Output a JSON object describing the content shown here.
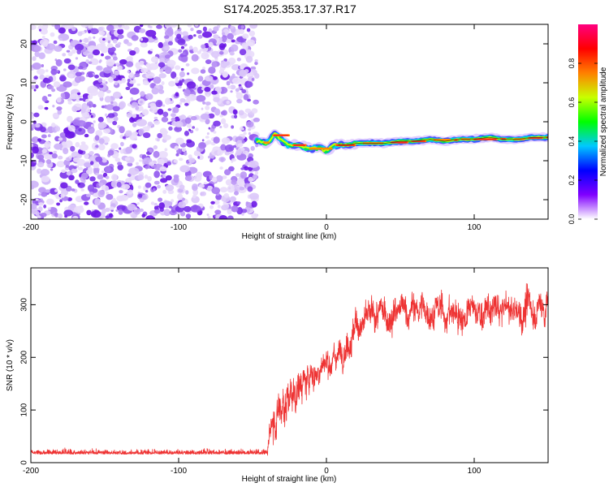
{
  "title": "S174.2025.353.17.37.R17",
  "chart_data": [
    {
      "type": "heatmap",
      "name": "spectrogram",
      "xlabel": "Height of straight line (km)",
      "ylabel": "Frequency (Hz)",
      "xlim": [
        -200,
        150
      ],
      "ylim": [
        -25,
        25
      ],
      "xticks": [
        -200,
        -100,
        0,
        100
      ],
      "yticks": [
        20,
        10,
        0,
        -10,
        -20
      ],
      "noise_region": {
        "x_range": [
          -200,
          -47
        ],
        "description": "scattered low-amplitude noise"
      },
      "signal_line": {
        "x": [
          -47,
          -40,
          -35,
          -30,
          -25,
          -20,
          -15,
          -10,
          -5,
          0,
          5,
          10,
          15,
          20,
          30,
          40,
          50,
          60,
          70,
          80,
          90,
          100,
          110,
          120,
          130,
          140,
          150
        ],
        "freq": [
          -5,
          -5.5,
          -3,
          -5,
          -6,
          -6,
          -6.5,
          -7,
          -6.5,
          -7.5,
          -6,
          -6,
          -6,
          -5.5,
          -5.5,
          -5.5,
          -5,
          -5,
          -4.5,
          -5,
          -4.5,
          -4.5,
          -4,
          -4.5,
          -4.5,
          -4,
          -4
        ]
      },
      "colorbar": {
        "label": "Normalized spectral amplitude",
        "range": [
          0,
          1
        ],
        "ticks": [
          0.0,
          0.2,
          0.4,
          0.6,
          0.8
        ],
        "tick_labels": [
          "0.0",
          "0.2",
          "0.4",
          "0.6",
          "0.8"
        ],
        "colors": [
          "#ffffff",
          "#8000ff",
          "#0000ff",
          "#00c8ff",
          "#00ff00",
          "#c8ff00",
          "#ff8000",
          "#ff0000",
          "#ff0080"
        ]
      }
    },
    {
      "type": "line",
      "name": "snr",
      "xlabel": "Height of straight line (km)",
      "ylabel": "SNR (10 * v/v)",
      "xlim": [
        -200,
        150
      ],
      "ylim": [
        0,
        370
      ],
      "xticks": [
        -200,
        -100,
        0,
        100
      ],
      "yticks": [
        0,
        100,
        200,
        300
      ],
      "color": "#ee3333",
      "series_envelope": {
        "x": [
          -200,
          -150,
          -100,
          -50,
          -40,
          -38,
          -35,
          -30,
          -25,
          -20,
          -15,
          -10,
          -5,
          0,
          5,
          10,
          15,
          20,
          30,
          40,
          50,
          60,
          70,
          80,
          90,
          100,
          110,
          120,
          130,
          140,
          150
        ],
        "mean": [
          18,
          18,
          18,
          18,
          18,
          70,
          90,
          110,
          130,
          140,
          150,
          165,
          175,
          190,
          200,
          215,
          240,
          260,
          270,
          280,
          285,
          290,
          290,
          285,
          280,
          285,
          285,
          290,
          285,
          295,
          300
        ],
        "noise": [
          10,
          10,
          10,
          10,
          10,
          30,
          35,
          40,
          40,
          35,
          30,
          30,
          25,
          25,
          25,
          25,
          30,
          30,
          30,
          30,
          30,
          30,
          30,
          30,
          30,
          30,
          30,
          30,
          30,
          35,
          35
        ]
      }
    }
  ]
}
